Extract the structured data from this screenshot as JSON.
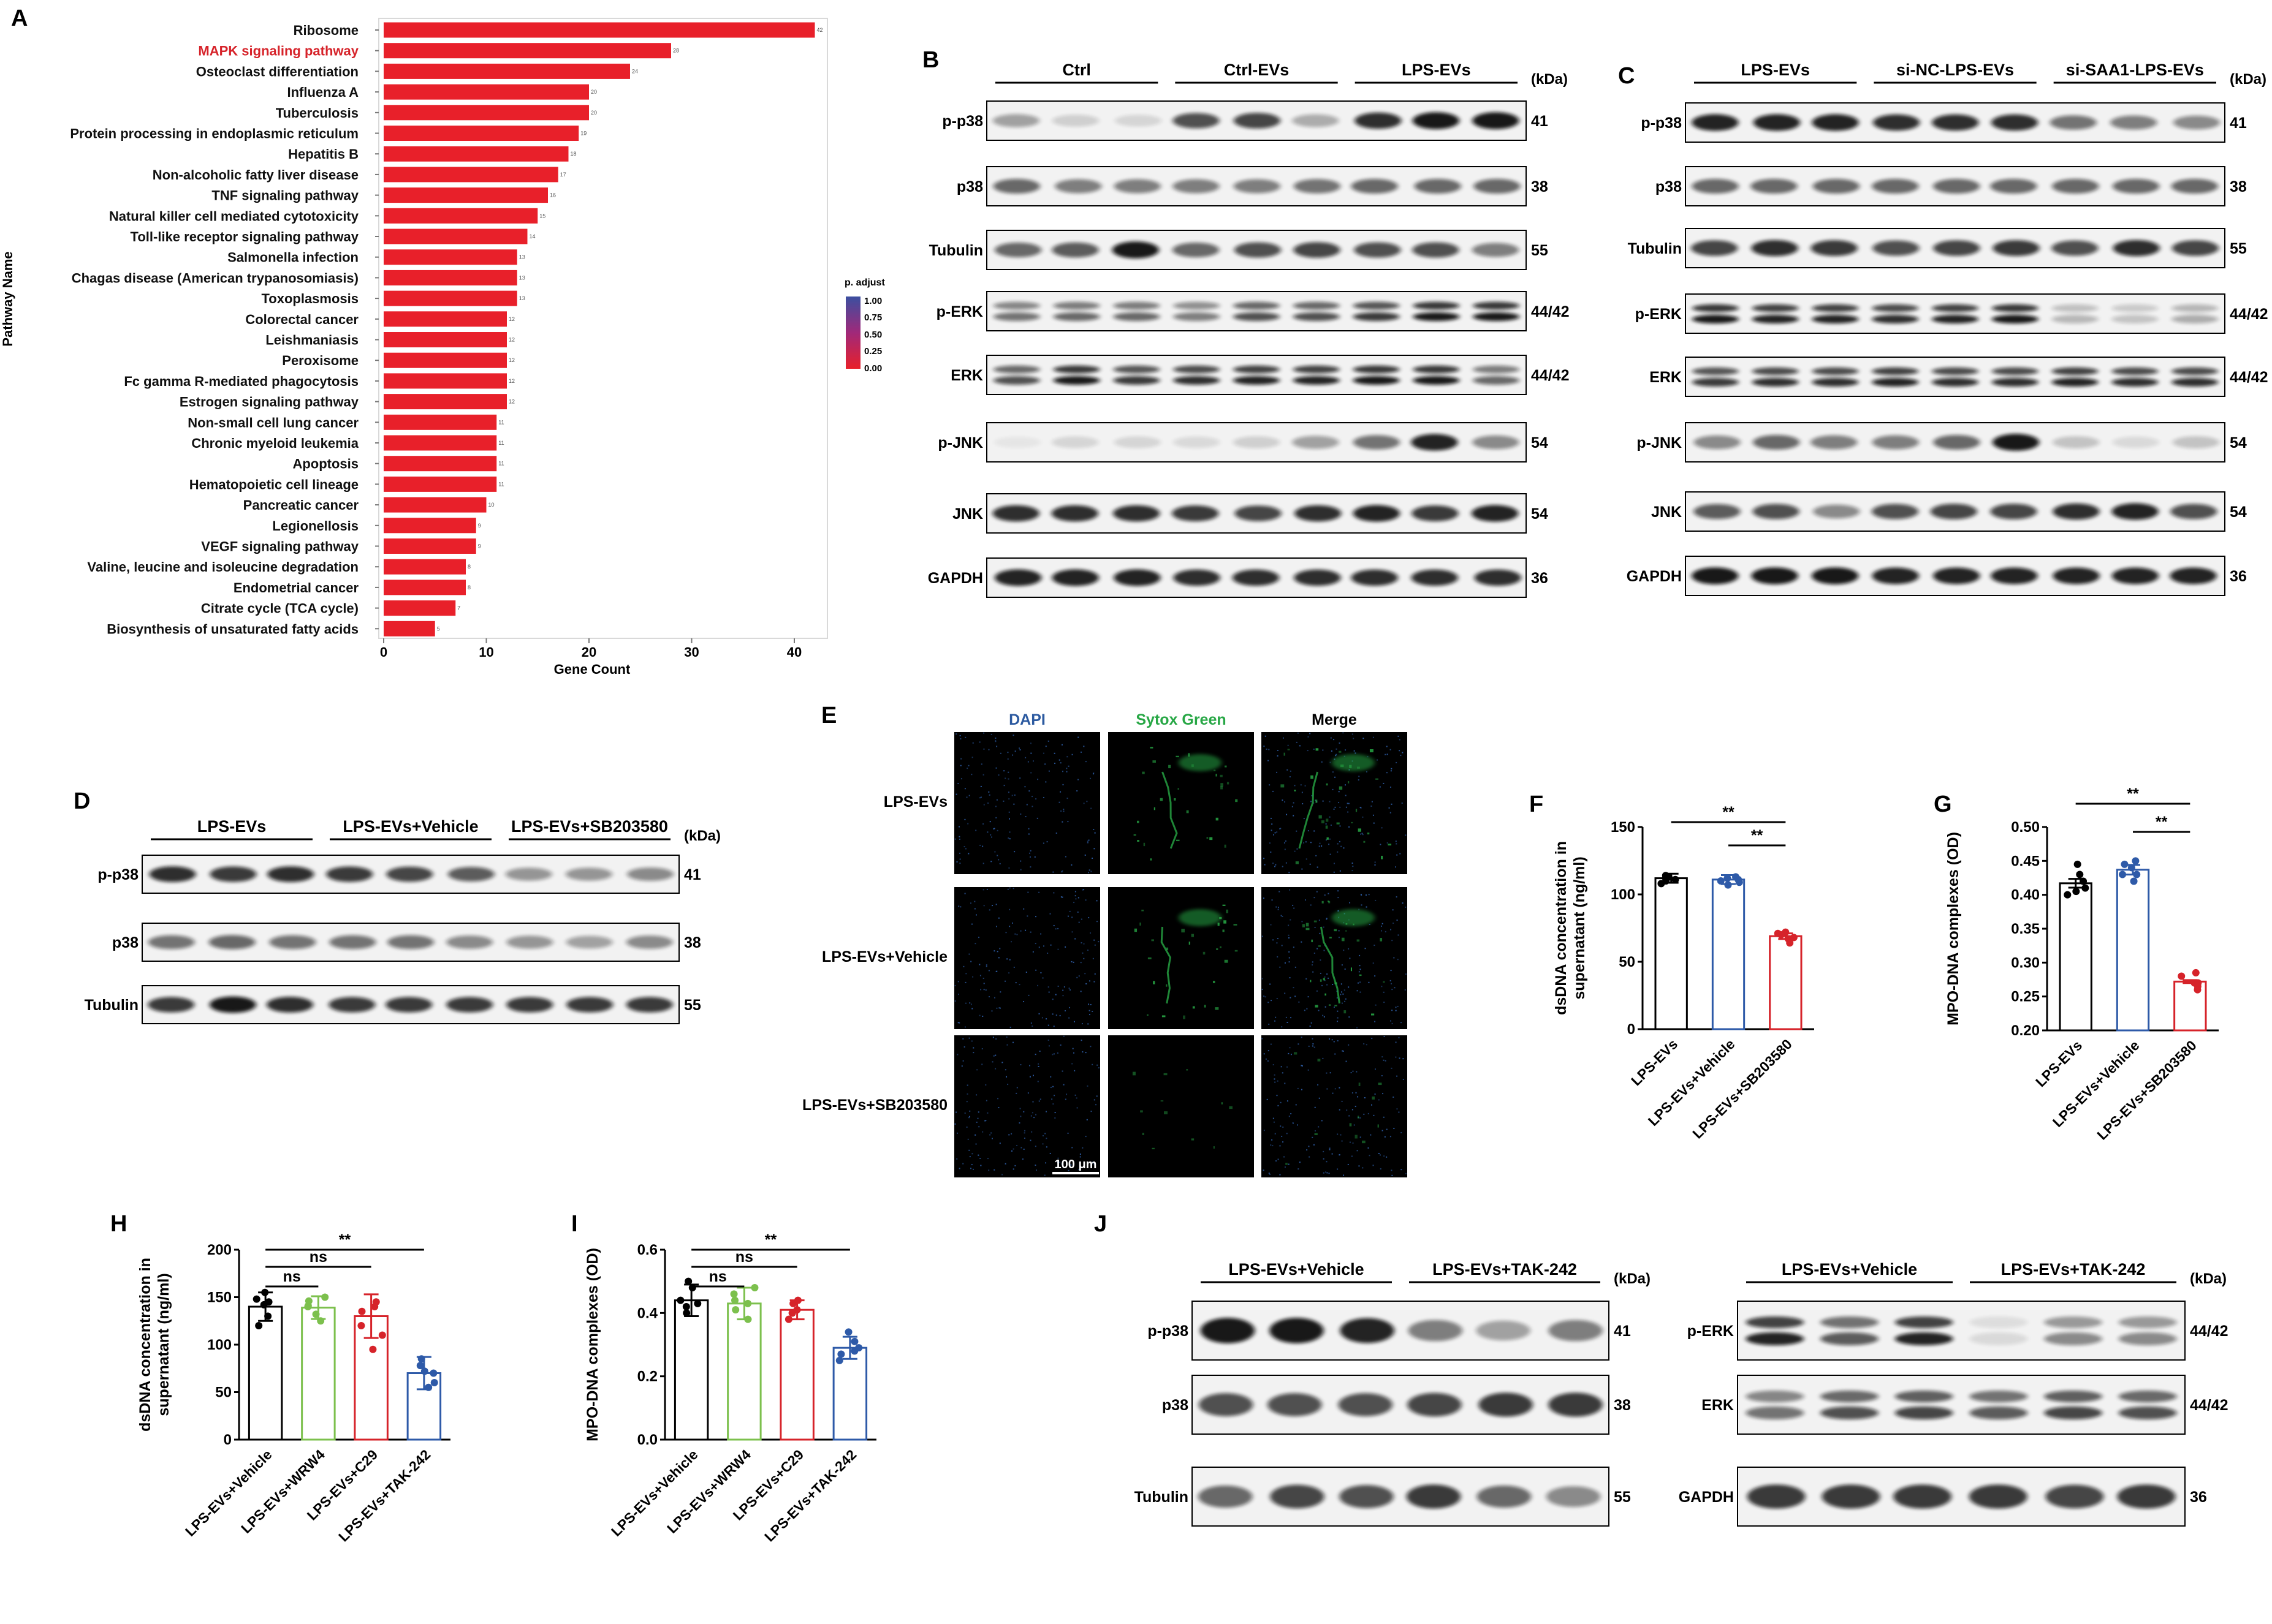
{
  "panel_letters": {
    "A": "A",
    "B": "B",
    "C": "C",
    "D": "D",
    "E": "E",
    "F": "F",
    "G": "G",
    "H": "H",
    "I": "I",
    "J": "J"
  },
  "kda": "(kDa)",
  "panelA": {
    "ylabel": "Pathway Name",
    "xlabel": "Gene Count",
    "legend_title": "p. adjust",
    "legend_ticks": [
      "1.00",
      "0.75",
      "0.50",
      "0.25",
      "0.00"
    ],
    "highlight_color": "#d6232a"
  },
  "chart_data": [
    {
      "type": "bar",
      "orientation": "horizontal",
      "xlabel": "Gene Count",
      "ylabel": "Pathway Name",
      "xlim": [
        0,
        42
      ],
      "xticks": [
        "0",
        "10",
        "20",
        "30",
        "40"
      ],
      "categories": [
        "Ribosome",
        "MAPK signaling pathway",
        "Osteoclast differentiation",
        "Influenza A",
        "Tuberculosis",
        "Protein processing in endoplasmic reticulum",
        "Hepatitis B",
        "Non-alcoholic fatty liver disease",
        "TNF signaling pathway",
        "Natural killer cell mediated cytotoxicity",
        "Toll-like receptor signaling pathway",
        "Salmonella infection",
        "Chagas disease (American trypanosomiasis)",
        "Toxoplasmosis",
        "Colorectal cancer",
        "Leishmaniasis",
        "Peroxisome",
        "Fc gamma R-mediated phagocytosis",
        "Estrogen signaling pathway",
        "Non-small cell lung cancer",
        "Chronic myeloid leukemia",
        "Apoptosis",
        "Hematopoietic cell lineage",
        "Pancreatic cancer",
        "Legionellosis",
        "VEGF signaling pathway",
        "Valine, leucine and isoleucine degradation",
        "Endometrial cancer",
        "Citrate cycle (TCA cycle)",
        "Biosynthesis of unsaturated fatty acids"
      ],
      "values": [
        42,
        28,
        24,
        20,
        20,
        19,
        18,
        17,
        16,
        15,
        14,
        13,
        13,
        13,
        12,
        12,
        12,
        12,
        12,
        11,
        11,
        11,
        11,
        10,
        9,
        9,
        8,
        8,
        7,
        5
      ],
      "data_labels": [
        "42",
        "28",
        "24",
        "20",
        "20",
        "19",
        "18",
        "17",
        "16",
        "15",
        "14",
        "13",
        "13",
        "13",
        "12",
        "12",
        "12",
        "12",
        "12",
        "11",
        "11",
        "11",
        "11",
        "10",
        "9",
        "9",
        "8",
        "8",
        "7",
        "5"
      ],
      "color_legend": {
        "title": "p. adjust",
        "range": [
          0,
          1
        ]
      },
      "bar_color": "#e8202a",
      "highlight_category": "MAPK signaling pathway"
    },
    {
      "type": "bar",
      "ylabel": "dsDNA concentration in supernatant (ng/ml)",
      "ylim": [
        0,
        150
      ],
      "yticks": [
        "0",
        "50",
        "100",
        "150"
      ],
      "categories": [
        "LPS-EVs",
        "LPS-EVs+Vehicle",
        "LPS-EVs+SB203580"
      ],
      "values": [
        112,
        111,
        69
      ],
      "points": [
        [
          108,
          110,
          114,
          112,
          111,
          113
        ],
        [
          107,
          111,
          113,
          110,
          112,
          109
        ],
        [
          64,
          67,
          70,
          72,
          68,
          71
        ]
      ],
      "colors": [
        "#000000",
        "#2e5aa8",
        "#d6232a"
      ],
      "significance": [
        {
          "from": 0,
          "to": 2,
          "label": "**"
        },
        {
          "from": 1,
          "to": 2,
          "label": "**"
        }
      ]
    },
    {
      "type": "bar",
      "ylabel": "MPO-DNA complexes (OD)",
      "ylim": [
        0.2,
        0.5
      ],
      "yticks": [
        "0.20",
        "0.25",
        "0.30",
        "0.35",
        "0.40",
        "0.45",
        "0.50"
      ],
      "categories": [
        "LPS-EVs",
        "LPS-EVs+Vehicle",
        "LPS-EVs+SB203580"
      ],
      "values": [
        0.417,
        0.437,
        0.272
      ],
      "points": [
        [
          0.4,
          0.41,
          0.42,
          0.43,
          0.445,
          0.405
        ],
        [
          0.42,
          0.43,
          0.44,
          0.445,
          0.45,
          0.43
        ],
        [
          0.26,
          0.265,
          0.27,
          0.28,
          0.285,
          0.27
        ]
      ],
      "colors": [
        "#000000",
        "#2e5aa8",
        "#d6232a"
      ],
      "significance": [
        {
          "from": 0,
          "to": 2,
          "label": "**"
        },
        {
          "from": 1,
          "to": 2,
          "label": "**"
        }
      ]
    },
    {
      "type": "bar",
      "ylabel": "dsDNA concentration in supernatant (ng/ml)",
      "ylim": [
        0,
        200
      ],
      "yticks": [
        "0",
        "50",
        "100",
        "150",
        "200"
      ],
      "categories": [
        "LPS-EVs+Vehicle",
        "LPS-EVs+WRW4",
        "LPS-EVs+C29",
        "LPS-EVs+TAK-242"
      ],
      "values": [
        140,
        139,
        130,
        70
      ],
      "errors": [
        15,
        12,
        23,
        17
      ],
      "points": [
        [
          120,
          130,
          142,
          148,
          155,
          145
        ],
        [
          125,
          132,
          140,
          146,
          150,
          141
        ],
        [
          110,
          120,
          135,
          145,
          140,
          95
        ],
        [
          55,
          60,
          70,
          78,
          85,
          72
        ]
      ],
      "colors": [
        "#000000",
        "#7cc04d",
        "#d6232a",
        "#2e5aa8"
      ],
      "significance": [
        {
          "from": 0,
          "to": 1,
          "label": "ns"
        },
        {
          "from": 0,
          "to": 2,
          "label": "ns"
        },
        {
          "from": 0,
          "to": 3,
          "label": "**"
        }
      ]
    },
    {
      "type": "bar",
      "ylabel": "MPO-DNA complexes (OD)",
      "ylim": [
        0,
        0.6
      ],
      "yticks": [
        "0.0",
        "0.2",
        "0.4",
        "0.6"
      ],
      "categories": [
        "LPS-EVs+Vehicle",
        "LPS-EVs+WRW4",
        "LPS-EVs+C29",
        "LPS-EVs+TAK-242"
      ],
      "values": [
        0.44,
        0.43,
        0.41,
        0.29
      ],
      "errors": [
        0.05,
        0.05,
        0.03,
        0.035
      ],
      "points": [
        [
          0.4,
          0.42,
          0.44,
          0.48,
          0.5,
          0.43
        ],
        [
          0.38,
          0.41,
          0.43,
          0.46,
          0.48,
          0.44
        ],
        [
          0.38,
          0.4,
          0.41,
          0.43,
          0.44,
          0.4
        ],
        [
          0.25,
          0.27,
          0.29,
          0.31,
          0.34,
          0.28
        ]
      ],
      "colors": [
        "#000000",
        "#7cc04d",
        "#d6232a",
        "#2e5aa8"
      ],
      "significance": [
        {
          "from": 0,
          "to": 1,
          "label": "ns"
        },
        {
          "from": 0,
          "to": 2,
          "label": "ns"
        },
        {
          "from": 0,
          "to": 3,
          "label": "**"
        }
      ]
    }
  ],
  "panelB": {
    "groups": [
      "Ctrl",
      "Ctrl-EVs",
      "LPS-EVs"
    ],
    "rows": [
      {
        "label": "p-p38",
        "kda": "41"
      },
      {
        "label": "p38",
        "kda": "38"
      },
      {
        "label": "Tubulin",
        "kda": "55"
      },
      {
        "label": "p-ERK",
        "kda": "44/42"
      },
      {
        "label": "ERK",
        "kda": "44/42"
      },
      {
        "label": "p-JNK",
        "kda": "54"
      },
      {
        "label": "JNK",
        "kda": "54"
      },
      {
        "label": "GAPDH",
        "kda": "36"
      }
    ]
  },
  "panelC": {
    "groups": [
      "LPS-EVs",
      "si-NC-LPS-EVs",
      "si-SAA1-LPS-EVs"
    ],
    "rows": [
      {
        "label": "p-p38",
        "kda": "41"
      },
      {
        "label": "p38",
        "kda": "38"
      },
      {
        "label": "Tubulin",
        "kda": "55"
      },
      {
        "label": "p-ERK",
        "kda": "44/42"
      },
      {
        "label": "ERK",
        "kda": "44/42"
      },
      {
        "label": "p-JNK",
        "kda": "54"
      },
      {
        "label": "JNK",
        "kda": "54"
      },
      {
        "label": "GAPDH",
        "kda": "36"
      }
    ]
  },
  "panelD": {
    "groups": [
      "LPS-EVs",
      "LPS-EVs+Vehicle",
      "LPS-EVs+SB203580"
    ],
    "rows": [
      {
        "label": "p-p38",
        "kda": "41"
      },
      {
        "label": "p38",
        "kda": "38"
      },
      {
        "label": "Tubulin",
        "kda": "55"
      }
    ]
  },
  "panelE": {
    "columns": [
      "DAPI",
      "Sytox Green",
      "Merge"
    ],
    "rows": [
      "LPS-EVs",
      "LPS-EVs+Vehicle",
      "LPS-EVs+SB203580"
    ],
    "scale_bar": "100 μm",
    "colors": {
      "dapi": "#2c5aa0",
      "sytox": "#27a745"
    }
  },
  "panelJ": {
    "left": {
      "groups": [
        "LPS-EVs+Vehicle",
        "LPS-EVs+TAK-242"
      ],
      "rows": [
        {
          "label": "p-p38",
          "kda": "41"
        },
        {
          "label": "p38",
          "kda": "38"
        },
        {
          "label": "Tubulin",
          "kda": "55"
        }
      ]
    },
    "right": {
      "groups": [
        "LPS-EVs+Vehicle",
        "LPS-EVs+TAK-242"
      ],
      "rows": [
        {
          "label": "p-ERK",
          "kda": "44/42"
        },
        {
          "label": "ERK",
          "kda": "44/42"
        },
        {
          "label": "GAPDH",
          "kda": "36"
        }
      ]
    }
  }
}
